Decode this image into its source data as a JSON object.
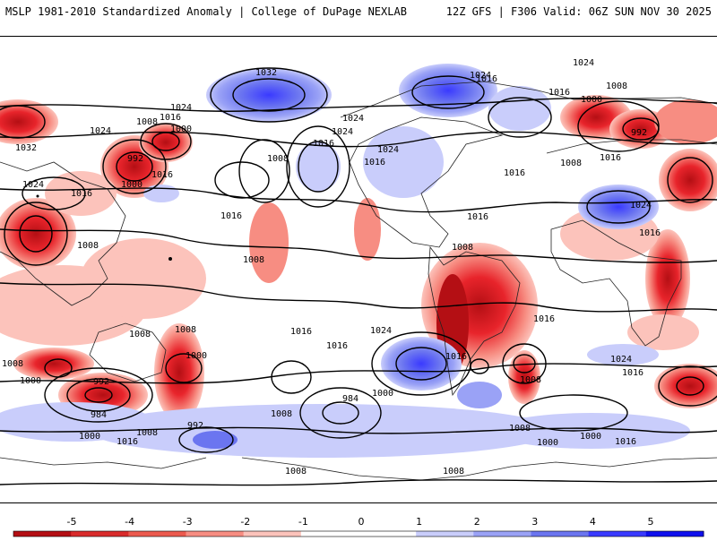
{
  "header": {
    "left_title": "MSLP 1981-2010 Standardized Anomaly | College of DuPage NEXLAB",
    "right_title": "12Z GFS | F306 Valid: 06Z SUN NOV 30 2025"
  },
  "map": {
    "isobar_labels": [
      "1032",
      "1024",
      "1024",
      "1016",
      "1000",
      "1008",
      "992",
      "1016",
      "1024",
      "1032",
      "1000",
      "1024",
      "1016",
      "1024",
      "1016",
      "1008",
      "1016",
      "1024",
      "1024",
      "1016",
      "1016",
      "1008",
      "1016",
      "1008",
      "1016",
      "1008",
      "1008",
      "1000",
      "1016",
      "1016",
      "1024",
      "1008",
      "992",
      "984",
      "1000",
      "1008",
      "1008",
      "1008",
      "992",
      "1000",
      "1008",
      "984",
      "1016",
      "1016",
      "1008",
      "992",
      "1016",
      "1024",
      "1016",
      "1008",
      "1000",
      "1024",
      "1000",
      "1008",
      "1000",
      "1016",
      "1008",
      "1016",
      "1000",
      "1016",
      "1008",
      "1024",
      "1016"
    ],
    "positive_anomaly_color": "#e8242b",
    "negative_anomaly_color": "#3a3aff"
  },
  "colorbar": {
    "ticks": [
      "-5",
      "-4",
      "-3",
      "-2",
      "-1",
      "0",
      "1",
      "2",
      "3",
      "4",
      "5"
    ],
    "colors": [
      "#b40f14",
      "#d92b2b",
      "#ec5a4e",
      "#f78d82",
      "#fcc3bb",
      "#ffffff",
      "#ffffff",
      "#c9cdfb",
      "#9aa2f6",
      "#6b75f0",
      "#3a3aff",
      "#1010ee"
    ]
  }
}
